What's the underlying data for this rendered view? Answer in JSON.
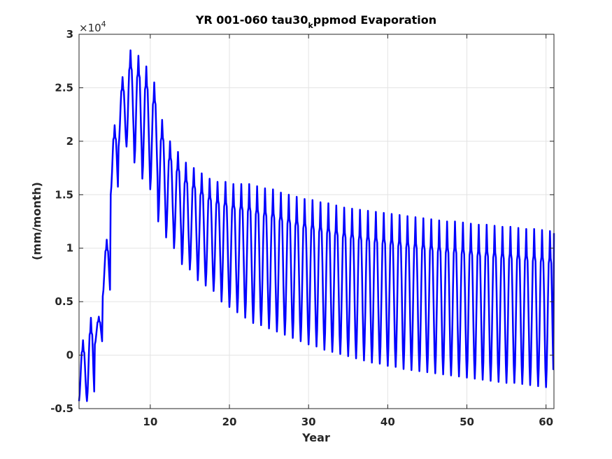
{
  "chart_data": {
    "type": "line",
    "title": "YR 001-060 tau30",
    "title_subscript": "k",
    "title_suffix": "ppmod Evaporation",
    "xlabel": "Year",
    "ylabel": "(mm/month)",
    "xlim": [
      1,
      61
    ],
    "ylim": [
      -0.5,
      3
    ],
    "y_multiplier_base": "×10",
    "y_multiplier_exp": "4",
    "xticks": [
      10,
      20,
      30,
      40,
      50,
      60
    ],
    "yticks": [
      -0.5,
      0,
      0.5,
      1,
      1.5,
      2,
      2.5,
      3
    ],
    "ytick_labels": [
      "-0.5",
      "0",
      "0.5",
      "1",
      "1.5",
      "2",
      "2.5",
      "3"
    ],
    "grid": true,
    "series": [
      {
        "color": "#0000ff",
        "annual_envelope": {
          "years": [
            1,
            2,
            3,
            4,
            5,
            6,
            7,
            8,
            9,
            10,
            11,
            12,
            13,
            14,
            15,
            16,
            17,
            18,
            19,
            20,
            21,
            22,
            23,
            24,
            25,
            26,
            27,
            28,
            29,
            30,
            31,
            32,
            33,
            34,
            35,
            36,
            37,
            38,
            39,
            40,
            41,
            42,
            43,
            44,
            45,
            46,
            47,
            48,
            49,
            50,
            51,
            52,
            53,
            54,
            55,
            56,
            57,
            58,
            59,
            60
          ],
          "max": [
            0.14,
            0.35,
            0.36,
            1.08,
            2.15,
            2.6,
            2.85,
            2.8,
            2.7,
            2.55,
            2.2,
            2.0,
            1.9,
            1.8,
            1.75,
            1.7,
            1.65,
            1.62,
            1.62,
            1.6,
            1.6,
            1.6,
            1.58,
            1.56,
            1.55,
            1.52,
            1.5,
            1.48,
            1.46,
            1.45,
            1.43,
            1.42,
            1.4,
            1.38,
            1.37,
            1.36,
            1.35,
            1.34,
            1.33,
            1.32,
            1.31,
            1.3,
            1.29,
            1.28,
            1.27,
            1.26,
            1.25,
            1.25,
            1.24,
            1.23,
            1.22,
            1.22,
            1.21,
            1.2,
            1.2,
            1.19,
            1.18,
            1.18,
            1.17,
            1.16
          ],
          "min": [
            -0.43,
            -0.43,
            0.1,
            0.55,
            1.5,
            1.95,
            1.95,
            1.8,
            1.65,
            1.55,
            1.25,
            1.1,
            1.0,
            0.85,
            0.8,
            0.7,
            0.65,
            0.6,
            0.5,
            0.45,
            0.4,
            0.35,
            0.3,
            0.28,
            0.25,
            0.22,
            0.19,
            0.16,
            0.13,
            0.1,
            0.08,
            0.05,
            0.03,
            0.01,
            -0.01,
            -0.03,
            -0.05,
            -0.07,
            -0.08,
            -0.1,
            -0.11,
            -0.13,
            -0.14,
            -0.15,
            -0.16,
            -0.17,
            -0.18,
            -0.19,
            -0.2,
            -0.21,
            -0.22,
            -0.23,
            -0.24,
            -0.25,
            -0.26,
            -0.26,
            -0.27,
            -0.28,
            -0.29,
            -0.3
          ]
        },
        "final_value": 1.14
      }
    ]
  }
}
